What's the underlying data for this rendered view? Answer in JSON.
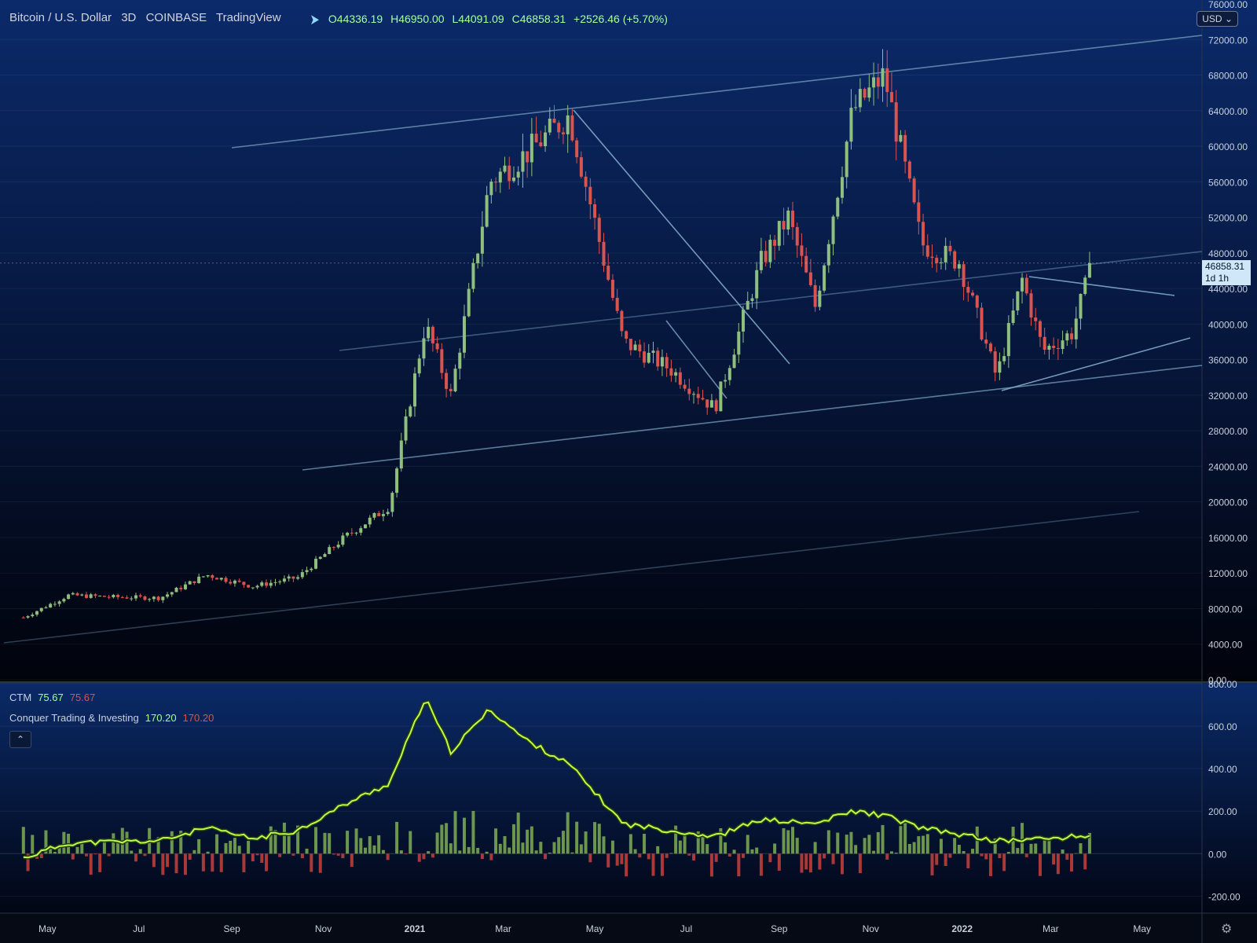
{
  "header": {
    "symbol": "Bitcoin / U.S. Dollar",
    "interval": "3D",
    "exchange": "COINBASE",
    "source": "TradingView",
    "ohlc": {
      "open_label": "O",
      "open": "44336.19",
      "high_label": "H",
      "high": "46950.00",
      "low_label": "L",
      "low": "44091.09",
      "close_label": "C",
      "close": "46858.31",
      "change": "+2526.46 (+5.70%)"
    }
  },
  "currency_button": "USD",
  "current_price": {
    "price": "46858.31",
    "countdown": "1d 1h"
  },
  "price_axis_labels": [
    "76000.00",
    "72000.00",
    "68000.00",
    "64000.00",
    "60000.00",
    "56000.00",
    "52000.00",
    "48000.00",
    "44000.00",
    "40000.00",
    "36000.00",
    "32000.00",
    "28000.00",
    "24000.00",
    "20000.00",
    "16000.00",
    "12000.00",
    "8000.00",
    "4000.00",
    "0.00"
  ],
  "indicator_axis_labels": [
    "800.00",
    "600.00",
    "400.00",
    "200.00",
    "0.00",
    "-200.00"
  ],
  "time_axis_labels": [
    "May",
    "Jul",
    "Sep",
    "Nov",
    "2021",
    "Mar",
    "May",
    "Jul",
    "Sep",
    "Nov",
    "2022",
    "Mar",
    "May"
  ],
  "indicators": {
    "ctm": {
      "name": "CTM",
      "value_up": "75.67",
      "value_down": "75.67"
    },
    "cti": {
      "name": "Conquer Trading & Investing",
      "value_up": "170.20",
      "value_down": "170.20"
    },
    "collapse_icon": "chevron-up-icon"
  },
  "colors": {
    "bull": "#8fbf7f",
    "bear": "#d9534f",
    "trendline": "#7fa8c8",
    "osc_line": "#b8ff4a",
    "hist_pos": "#7fae54",
    "hist_neg": "#c8413c"
  },
  "chart_data": {
    "type": "candlestick",
    "title": "Bitcoin / U.S. Dollar",
    "x_range": [
      "2020-04",
      "2022-05"
    ],
    "ylim": [
      0,
      76000
    ],
    "price_path": [
      [
        "2020-04-15",
        7000
      ],
      [
        "2020-05-15",
        9500
      ],
      [
        "2020-06-15",
        9300
      ],
      [
        "2020-07-15",
        9200
      ],
      [
        "2020-08-15",
        11800
      ],
      [
        "2020-09-15",
        10500
      ],
      [
        "2020-10-15",
        11500
      ],
      [
        "2020-11-15",
        16000
      ],
      [
        "2020-12-15",
        19500
      ],
      [
        "2021-01-08",
        40000
      ],
      [
        "2021-01-25",
        32000
      ],
      [
        "2021-02-20",
        56000
      ],
      [
        "2021-03-15",
        59000
      ],
      [
        "2021-04-14",
        63500
      ],
      [
        "2021-05-20",
        38000
      ],
      [
        "2021-06-20",
        35000
      ],
      [
        "2021-07-20",
        30500
      ],
      [
        "2021-08-20",
        47000
      ],
      [
        "2021-09-07",
        52000
      ],
      [
        "2021-09-25",
        42000
      ],
      [
        "2021-10-20",
        64000
      ],
      [
        "2021-11-10",
        68000
      ],
      [
        "2021-12-05",
        49000
      ],
      [
        "2021-12-30",
        47000
      ],
      [
        "2022-01-24",
        34000
      ],
      [
        "2022-02-10",
        45000
      ],
      [
        "2022-02-24",
        37000
      ],
      [
        "2022-03-15",
        39000
      ],
      [
        "2022-03-29",
        46858.31
      ]
    ],
    "oscillator": {
      "ylim": [
        -280,
        800
      ],
      "line": [
        [
          "2020-04-15",
          -20
        ],
        [
          "2020-05-15",
          50
        ],
        [
          "2020-07-15",
          60
        ],
        [
          "2020-08-15",
          120
        ],
        [
          "2020-09-15",
          70
        ],
        [
          "2020-10-15",
          110
        ],
        [
          "2020-11-15",
          230
        ],
        [
          "2020-12-15",
          330
        ],
        [
          "2021-01-08",
          730
        ],
        [
          "2021-01-25",
          480
        ],
        [
          "2021-02-20",
          680
        ],
        [
          "2021-03-15",
          540
        ],
        [
          "2021-04-14",
          420
        ],
        [
          "2021-05-20",
          140
        ],
        [
          "2021-06-20",
          110
        ],
        [
          "2021-07-20",
          80
        ],
        [
          "2021-08-20",
          160
        ],
        [
          "2021-09-25",
          140
        ],
        [
          "2021-10-20",
          200
        ],
        [
          "2021-11-10",
          180
        ],
        [
          "2021-12-05",
          120
        ],
        [
          "2022-01-24",
          60
        ],
        [
          "2022-02-24",
          70
        ],
        [
          "2022-03-29",
          85
        ]
      ]
    }
  }
}
